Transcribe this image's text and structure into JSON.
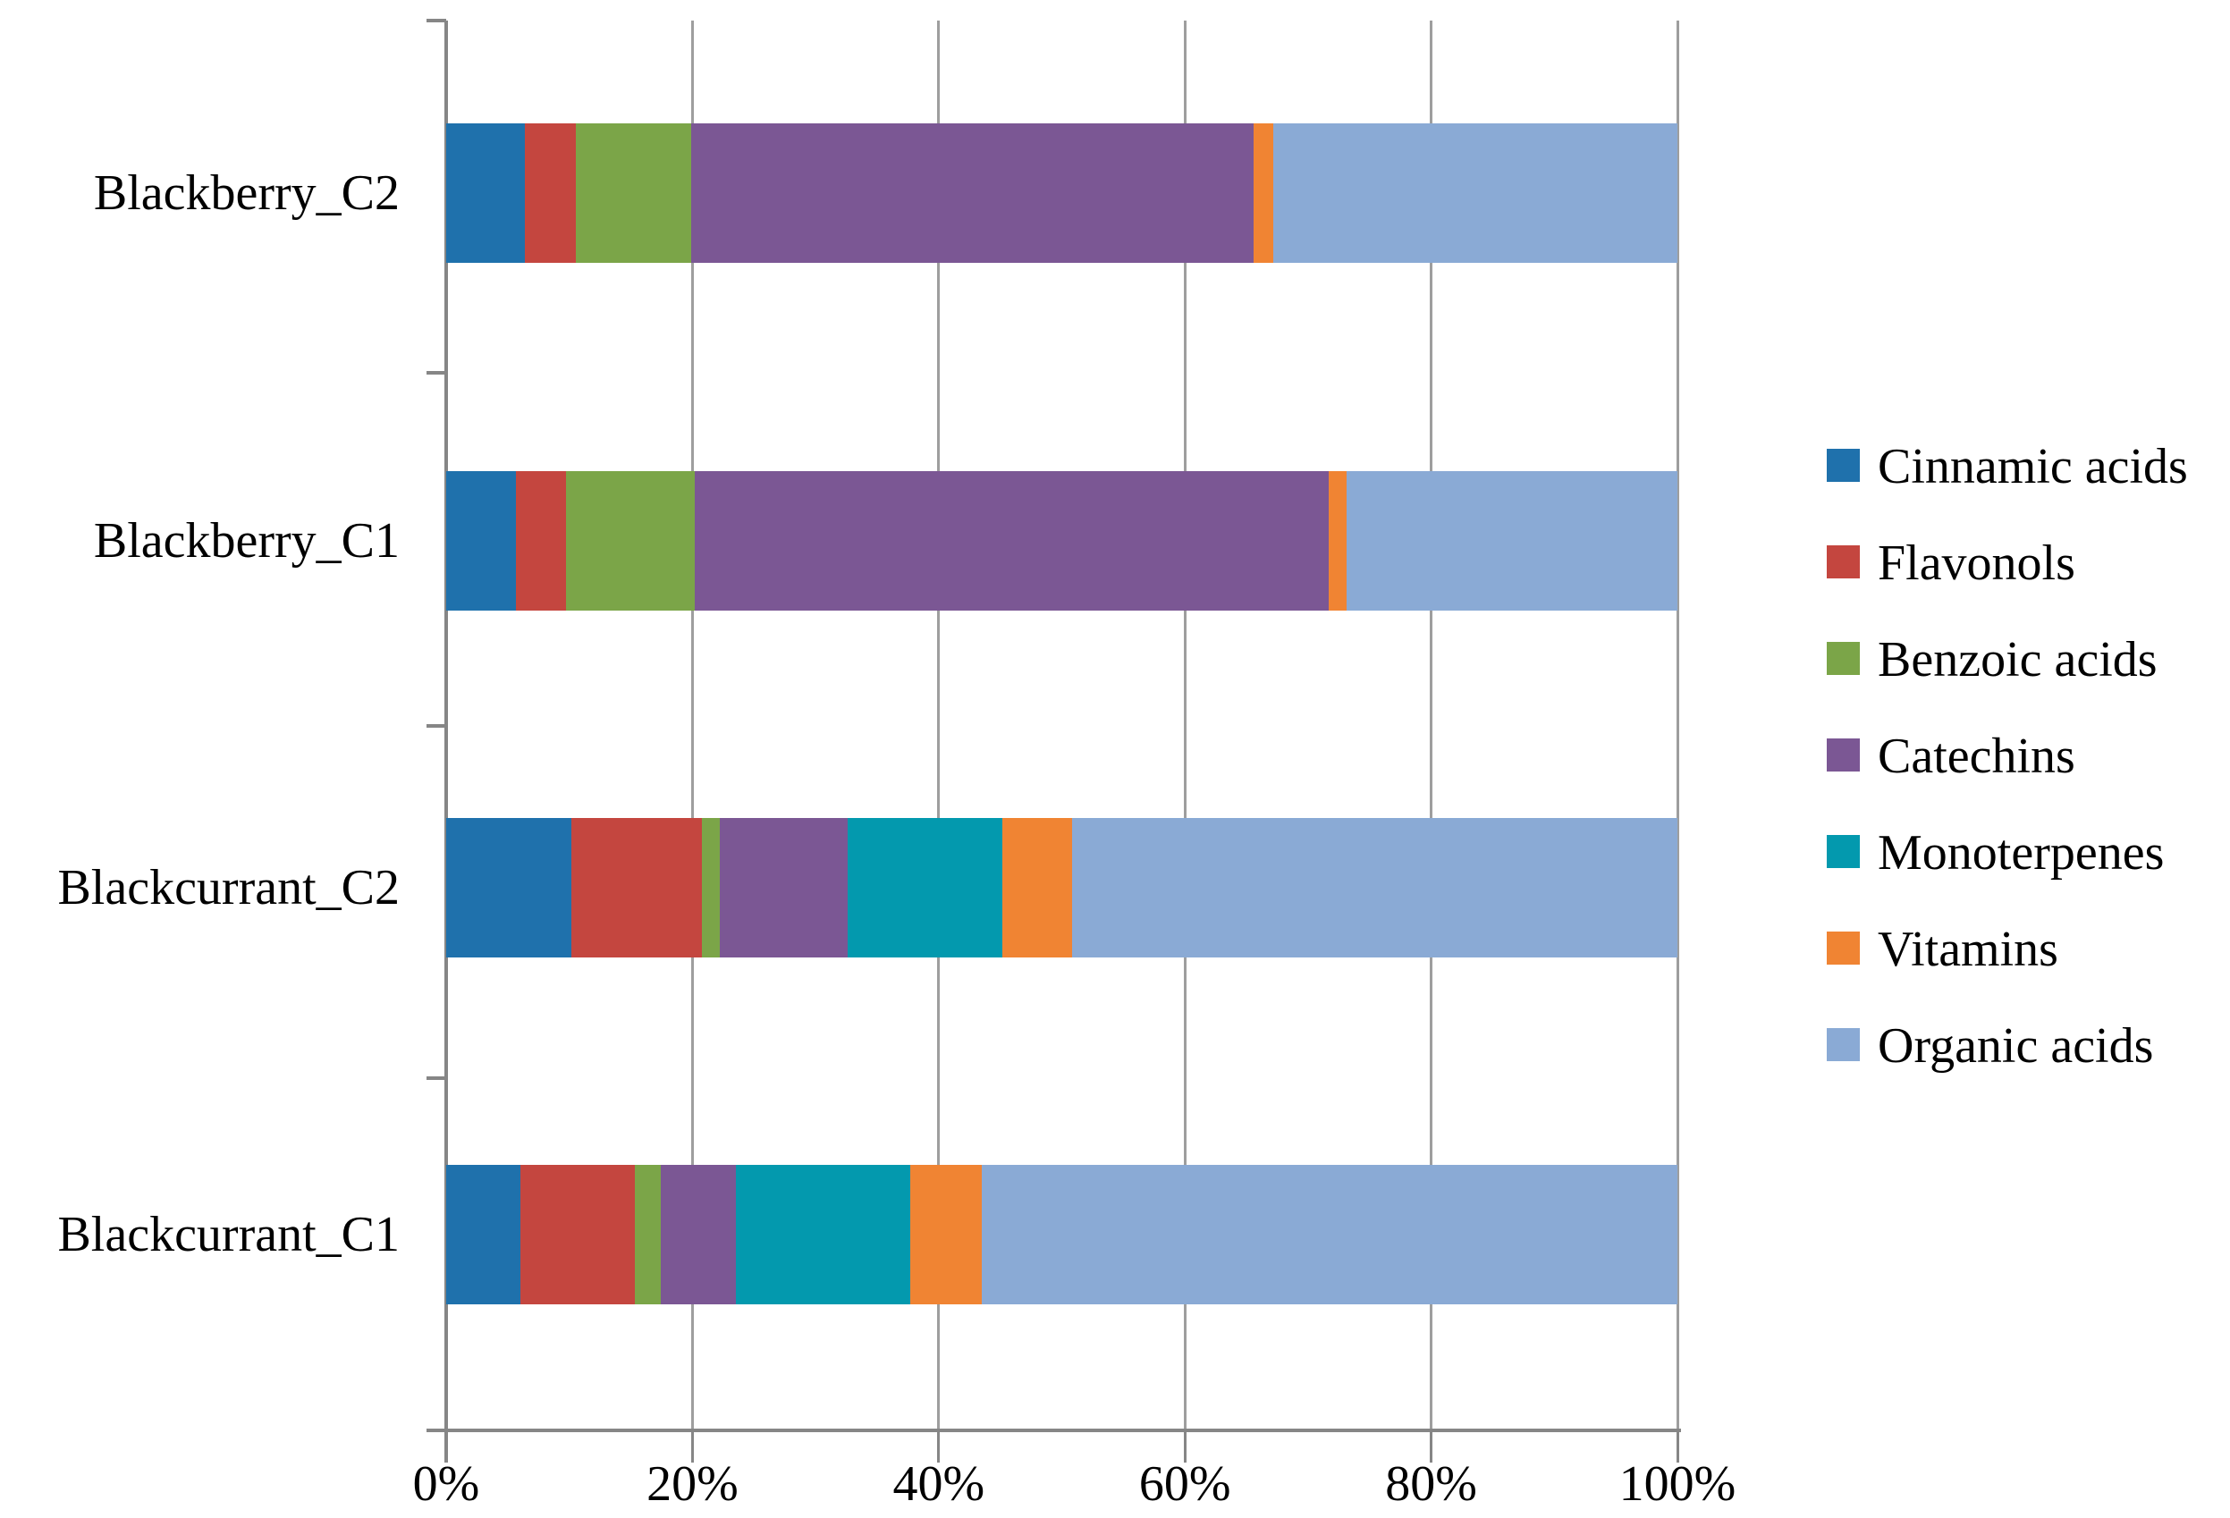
{
  "chart_data": {
    "type": "bar",
    "orientation": "horizontal",
    "stacked": true,
    "stack_mode": "percent",
    "title": "",
    "xlabel": "",
    "ylabel": "",
    "xlim": [
      0,
      100
    ],
    "grid": true,
    "legend_position": "right",
    "categories": [
      "Blackberry_C2",
      "Blackberry_C1",
      "Blackcurrant_C2",
      "Blackcurrant_C1"
    ],
    "x_ticks": [
      {
        "label": "0%",
        "value": 0
      },
      {
        "label": "20%",
        "value": 20
      },
      {
        "label": "40%",
        "value": 40
      },
      {
        "label": "60%",
        "value": 60
      },
      {
        "label": "80%",
        "value": 80
      },
      {
        "label": "100%",
        "value": 100
      }
    ],
    "series": [
      {
        "name": "Cinnamic acids",
        "color": "#1F71AC",
        "values": [
          6.4,
          5.7,
          10.2,
          6.0
        ]
      },
      {
        "name": "Flavonols",
        "color": "#C4463F",
        "values": [
          4.1,
          4.0,
          10.6,
          9.3
        ]
      },
      {
        "name": "Benzoic acids",
        "color": "#7BA548",
        "values": [
          9.4,
          10.5,
          1.4,
          2.1
        ]
      },
      {
        "name": "Catechins",
        "color": "#7B5794",
        "values": [
          45.7,
          51.5,
          10.4,
          6.1
        ]
      },
      {
        "name": "Monoterpenes",
        "color": "#0399AE",
        "values": [
          0,
          0,
          12.6,
          14.2
        ]
      },
      {
        "name": "Vitamins",
        "color": "#F08433",
        "values": [
          1.6,
          1.4,
          5.6,
          5.8
        ]
      },
      {
        "name": "Organic acids",
        "color": "#8AAAD5",
        "values": [
          32.8,
          26.9,
          49.2,
          56.5
        ]
      }
    ]
  },
  "colors": {
    "background": "#FFFFFF",
    "gridline": "#9E9E9E",
    "axis": "#868686",
    "text": "#000000"
  }
}
